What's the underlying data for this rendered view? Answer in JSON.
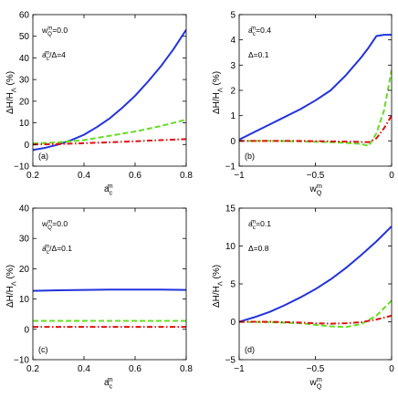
{
  "chart_data": [
    {
      "type": "line",
      "panel": "(a)",
      "xlim": [
        0.2,
        0.8
      ],
      "ylim": [
        -10,
        60
      ],
      "xticks": [
        0.2,
        0.4,
        0.6,
        0.8
      ],
      "yticks": [
        -10,
        0,
        10,
        20,
        30,
        40,
        50,
        60
      ],
      "xticklabels": [
        "0.2",
        "0.4",
        "0.6",
        "0.8"
      ],
      "yticklabels": [
        "−10",
        "0",
        "10",
        "20",
        "30",
        "40",
        "50",
        "60"
      ],
      "xlabel": "a_c^m",
      "ylabel": "ΔH/H_Λ (%)",
      "annotations": [
        "w_Q^m=0.0",
        "a_c^m/Δ=4"
      ],
      "series": [
        {
          "style": "solid",
          "color": "#2233dd",
          "x": [
            0.2,
            0.25,
            0.3,
            0.35,
            0.4,
            0.45,
            0.5,
            0.55,
            0.6,
            0.65,
            0.7,
            0.75,
            0.8
          ],
          "y": [
            -2.5,
            -1.5,
            0.0,
            2.0,
            4.5,
            8.0,
            12.0,
            17.0,
            22.5,
            29.0,
            36.0,
            44.0,
            53.0
          ]
        },
        {
          "style": "dashed",
          "color": "#66dd22",
          "x": [
            0.2,
            0.3,
            0.4,
            0.5,
            0.6,
            0.7,
            0.8
          ],
          "y": [
            0.5,
            1.0,
            2.0,
            4.0,
            6.0,
            8.5,
            11.5
          ]
        },
        {
          "style": "dashdot",
          "color": "#dd1111",
          "x": [
            0.2,
            0.3,
            0.4,
            0.5,
            0.6,
            0.7,
            0.8
          ],
          "y": [
            0.0,
            0.2,
            0.6,
            1.0,
            1.5,
            2.0,
            2.5
          ]
        }
      ]
    },
    {
      "type": "line",
      "panel": "(b)",
      "xlim": [
        -1,
        0
      ],
      "ylim": [
        -1,
        5
      ],
      "xticks": [
        -1,
        -0.5,
        0
      ],
      "yticks": [
        -1,
        0,
        1,
        2,
        3,
        4,
        5
      ],
      "xticklabels": [
        "−1",
        "−0.5",
        "0"
      ],
      "yticklabels": [
        "−1",
        "0",
        "1",
        "2",
        "3",
        "4",
        "5"
      ],
      "xlabel": "w_Q^m",
      "ylabel": "ΔH/H_Λ (%)",
      "annotations": [
        "a_c^m=0.4",
        "Δ=0.1"
      ],
      "series": [
        {
          "style": "solid",
          "color": "#2233dd",
          "x": [
            -1,
            -0.9,
            -0.8,
            -0.7,
            -0.6,
            -0.5,
            -0.4,
            -0.3,
            -0.2,
            -0.15,
            -0.1,
            -0.05,
            0
          ],
          "y": [
            0.05,
            0.35,
            0.65,
            0.95,
            1.25,
            1.6,
            2.0,
            2.6,
            3.3,
            3.7,
            4.15,
            4.2,
            4.2
          ]
        },
        {
          "style": "dashed",
          "color": "#66dd22",
          "x": [
            -1,
            -0.8,
            -0.6,
            -0.4,
            -0.3,
            -0.2,
            -0.15,
            -0.1,
            -0.05,
            0
          ],
          "y": [
            0.0,
            0.0,
            -0.02,
            -0.05,
            -0.08,
            -0.12,
            -0.2,
            0.3,
            1.2,
            2.8
          ]
        },
        {
          "style": "dashdot",
          "color": "#dd1111",
          "x": [
            -1,
            -0.8,
            -0.6,
            -0.4,
            -0.3,
            -0.2,
            -0.15,
            -0.1,
            -0.05,
            0
          ],
          "y": [
            0.0,
            0.0,
            0.0,
            -0.02,
            -0.03,
            -0.04,
            -0.05,
            0.1,
            0.5,
            1.0
          ]
        }
      ]
    },
    {
      "type": "line",
      "panel": "(c)",
      "xlim": [
        0.2,
        0.8
      ],
      "ylim": [
        -10,
        40
      ],
      "xticks": [
        0.2,
        0.4,
        0.6,
        0.8
      ],
      "yticks": [
        -10,
        0,
        10,
        20,
        30,
        40
      ],
      "xticklabels": [
        "0.2",
        "0.4",
        "0.6",
        "0.8"
      ],
      "yticklabels": [
        "−10",
        "0",
        "10",
        "20",
        "30",
        "40"
      ],
      "xlabel": "a_c^m",
      "ylabel": "ΔH/H_Λ (%)",
      "annotations": [
        "w_Q^m=0.0",
        "a_c^m/Δ=0.1"
      ],
      "series": [
        {
          "style": "solid",
          "color": "#2233dd",
          "x": [
            0.2,
            0.3,
            0.4,
            0.5,
            0.6,
            0.7,
            0.8
          ],
          "y": [
            12.7,
            12.9,
            13.0,
            13.1,
            13.1,
            13.1,
            13.0
          ]
        },
        {
          "style": "dashed",
          "color": "#66dd22",
          "x": [
            0.2,
            0.8
          ],
          "y": [
            2.8,
            2.8
          ]
        },
        {
          "style": "dashdot",
          "color": "#dd1111",
          "x": [
            0.2,
            0.8
          ],
          "y": [
            0.8,
            0.8
          ]
        }
      ]
    },
    {
      "type": "line",
      "panel": "(d)",
      "xlim": [
        -1,
        0
      ],
      "ylim": [
        -5,
        15
      ],
      "xticks": [
        -1,
        -0.5,
        0
      ],
      "yticks": [
        -5,
        0,
        5,
        10,
        15
      ],
      "xticklabels": [
        "−1",
        "−0.5",
        "0"
      ],
      "yticklabels": [
        "−5",
        "0",
        "5",
        "10",
        "15"
      ],
      "xlabel": "w_Q^m",
      "ylabel": "ΔH/H_Λ (%)",
      "annotations": [
        "a_c^m=0.1",
        "Δ=0.8"
      ],
      "series": [
        {
          "style": "solid",
          "color": "#2233dd",
          "x": [
            -1,
            -0.9,
            -0.8,
            -0.7,
            -0.6,
            -0.5,
            -0.4,
            -0.3,
            -0.2,
            -0.1,
            0
          ],
          "y": [
            0.0,
            0.6,
            1.3,
            2.2,
            3.2,
            4.3,
            5.6,
            7.1,
            8.8,
            10.6,
            12.6
          ]
        },
        {
          "style": "dashed",
          "color": "#66dd22",
          "x": [
            -1,
            -0.8,
            -0.6,
            -0.5,
            -0.4,
            -0.3,
            -0.2,
            -0.1,
            0
          ],
          "y": [
            0.0,
            -0.05,
            -0.2,
            -0.4,
            -0.6,
            -0.7,
            -0.3,
            0.8,
            2.8
          ]
        },
        {
          "style": "dashdot",
          "color": "#dd1111",
          "x": [
            -1,
            -0.8,
            -0.6,
            -0.5,
            -0.4,
            -0.3,
            -0.2,
            -0.1,
            0
          ],
          "y": [
            0.0,
            0.0,
            -0.1,
            -0.2,
            -0.25,
            -0.2,
            -0.05,
            0.3,
            0.8
          ]
        }
      ]
    }
  ]
}
